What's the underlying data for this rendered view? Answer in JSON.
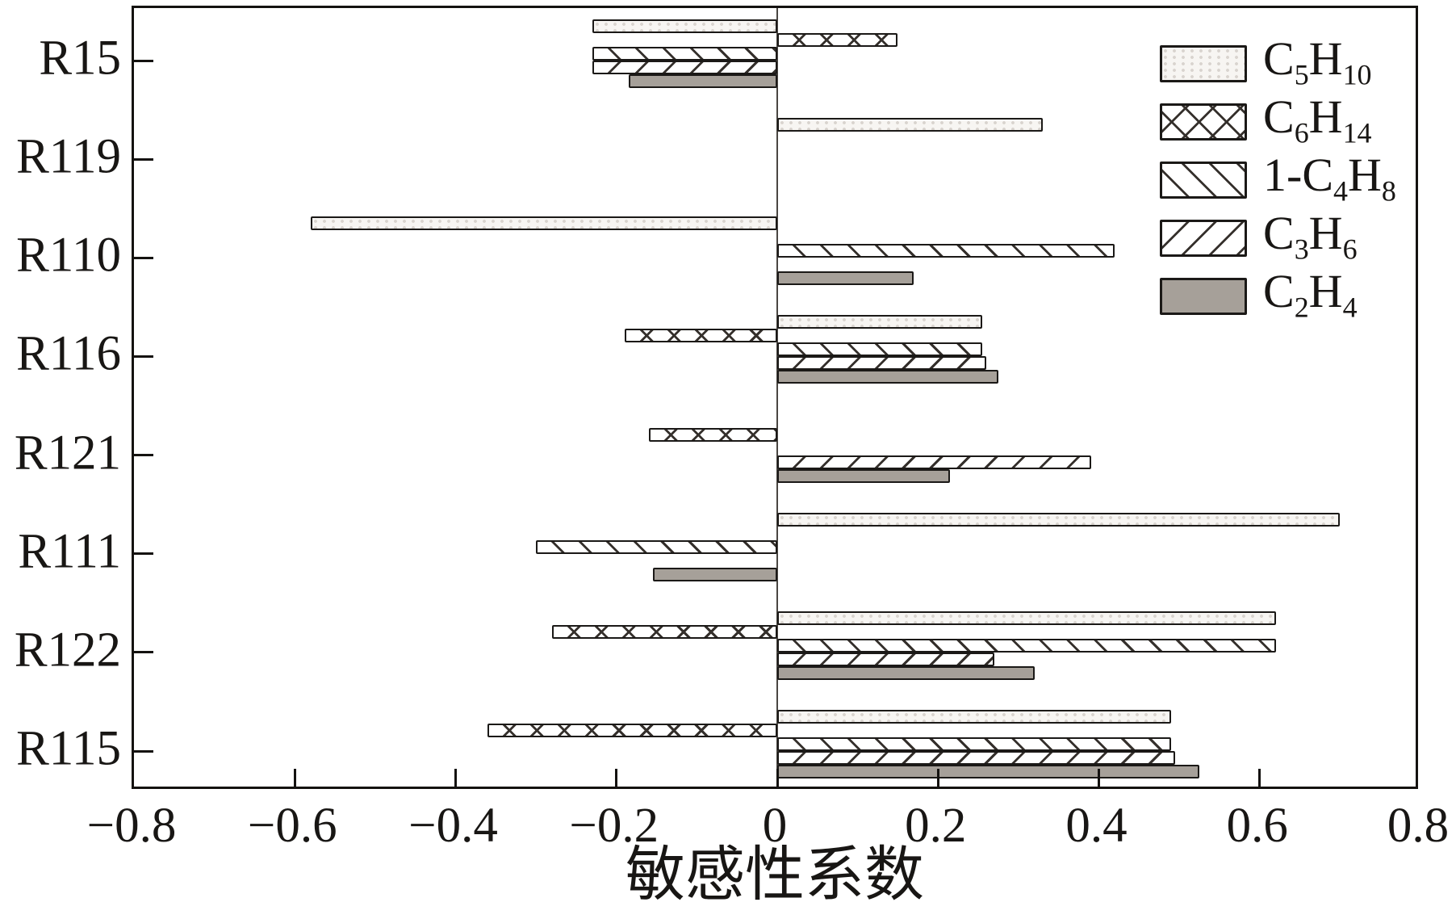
{
  "chart_data": {
    "type": "bar",
    "orientation": "horizontal",
    "title": "",
    "xlabel": "敏感性系数",
    "ylabel": "",
    "xlim": [
      -0.8,
      0.8
    ],
    "x_ticks": [
      -0.8,
      -0.6,
      -0.4,
      -0.2,
      0,
      0.2,
      0.4,
      0.6,
      0.8
    ],
    "x_tick_labels": [
      "−0.8",
      "−0.6",
      "−0.4",
      "−0.2",
      "0",
      "0.2",
      "0.4",
      "0.6",
      "0.8"
    ],
    "categories": [
      "R15",
      "R119",
      "R110",
      "R116",
      "R121",
      "R111",
      "R122",
      "R115"
    ],
    "series": [
      {
        "name": "C5H10",
        "pattern": "dots",
        "values": [
          -0.23,
          0.33,
          -0.58,
          0.255,
          0,
          0.7,
          0.62,
          0.49
        ]
      },
      {
        "name": "C6H14",
        "pattern": "crosshatch",
        "values": [
          0.15,
          0,
          0,
          -0.19,
          -0.16,
          0,
          -0.28,
          -0.36
        ]
      },
      {
        "name": "1-C4H8",
        "pattern": "backslash",
        "values": [
          -0.23,
          0,
          0.42,
          0.255,
          0,
          -0.3,
          0.62,
          0.49
        ]
      },
      {
        "name": "C3H6",
        "pattern": "slash",
        "values": [
          -0.23,
          0,
          0,
          0.26,
          0.39,
          0,
          0.27,
          0.495
        ]
      },
      {
        "name": "C2H4",
        "pattern": "solid",
        "values": [
          -0.185,
          0,
          0.17,
          0.275,
          0.215,
          -0.155,
          0.32,
          0.525
        ]
      }
    ],
    "legend_position": "upper right",
    "grid": false
  },
  "colors": {
    "ink": "#141210",
    "bar_border": "#1b1917",
    "hatch_line": "#35302c",
    "solid_gray": "#a6a099",
    "dot_fill": "#f7f5f2",
    "zero_line": "#4a4642"
  }
}
